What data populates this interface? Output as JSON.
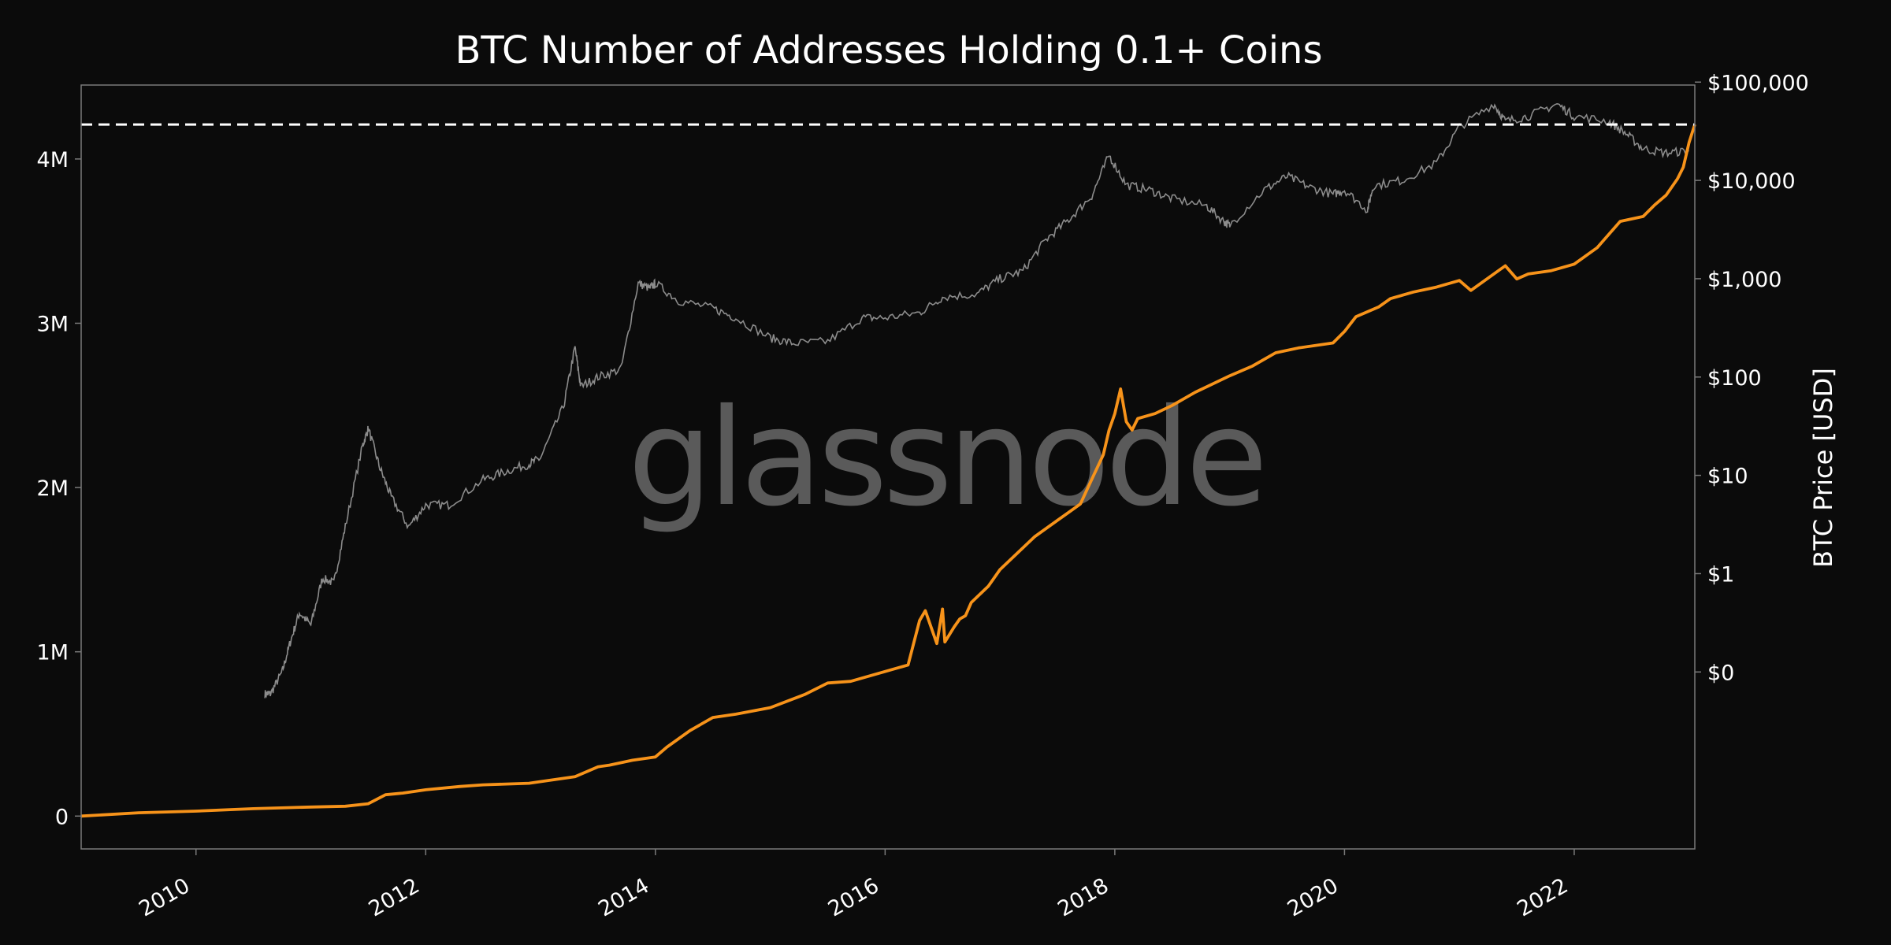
{
  "chart_data": {
    "type": "line",
    "title": "BTC Number of Addresses Holding 0.1+ Coins",
    "watermark": "glassnode",
    "xlabel": "",
    "ylabel_left": "",
    "ylabel_right": "BTC Price [USD]",
    "x_range": [
      2009.0,
      2023.05
    ],
    "y_left_range": [
      -200000,
      4450000
    ],
    "y_right_log10_range": [
      -2.8,
      4.97
    ],
    "x_ticks": [
      {
        "value": 2010,
        "label": "2010"
      },
      {
        "value": 2012,
        "label": "2012"
      },
      {
        "value": 2014,
        "label": "2014"
      },
      {
        "value": 2016,
        "label": "2016"
      },
      {
        "value": 2018,
        "label": "2018"
      },
      {
        "value": 2020,
        "label": "2020"
      },
      {
        "value": 2022,
        "label": "2022"
      }
    ],
    "y_left_ticks": [
      {
        "value": 0,
        "label": "0"
      },
      {
        "value": 1000000,
        "label": "1M"
      },
      {
        "value": 2000000,
        "label": "2M"
      },
      {
        "value": 3000000,
        "label": "3M"
      },
      {
        "value": 4000000,
        "label": "4M"
      }
    ],
    "y_right_ticks": [
      {
        "value": -1,
        "label": "$0"
      },
      {
        "value": 0,
        "label": "$1"
      },
      {
        "value": 1,
        "label": "$10"
      },
      {
        "value": 2,
        "label": "$100"
      },
      {
        "value": 3,
        "label": "$1,000"
      },
      {
        "value": 4,
        "label": "$10,000"
      },
      {
        "value": 5,
        "label": "$100,000"
      }
    ],
    "reference_line": {
      "axis": "left",
      "value": 4210000,
      "style": "dashed",
      "color": "#ffffff"
    },
    "grid": false,
    "colors": {
      "background": "#0b0b0b",
      "addresses": "#f7931a",
      "price": "#8c8c8c",
      "frame": "#7a7a7a",
      "text": "#ffffff"
    },
    "series": [
      {
        "name": "",
        "axis": "left",
        "color": "#f7931a",
        "x": [
          2009.0,
          2009.5,
          2010.0,
          2010.5,
          2011.0,
          2011.3,
          2011.5,
          2011.65,
          2011.8,
          2012.0,
          2012.3,
          2012.5,
          2012.9,
          2013.0,
          2013.3,
          2013.5,
          2013.6,
          2013.8,
          2014.0,
          2014.1,
          2014.3,
          2014.5,
          2014.7,
          2015.0,
          2015.3,
          2015.5,
          2015.7,
          2016.0,
          2016.2,
          2016.3,
          2016.35,
          2016.45,
          2016.5,
          2016.52,
          2016.6,
          2016.65,
          2016.7,
          2016.75,
          2016.9,
          2017.0,
          2017.3,
          2017.5,
          2017.6,
          2017.7,
          2017.8,
          2017.9,
          2017.95,
          2018.0,
          2018.05,
          2018.1,
          2018.15,
          2018.2,
          2018.35,
          2018.5,
          2018.7,
          2019.0,
          2019.2,
          2019.4,
          2019.6,
          2019.9,
          2020.0,
          2020.1,
          2020.3,
          2020.4,
          2020.6,
          2020.8,
          2021.0,
          2021.1,
          2021.4,
          2021.5,
          2021.6,
          2021.8,
          2022.0,
          2022.2,
          2022.4,
          2022.6,
          2022.7,
          2022.8,
          2022.9,
          2022.95,
          2023.0,
          2023.05
        ],
        "values": [
          0,
          20000,
          30000,
          45000,
          55000,
          60000,
          75000,
          130000,
          140000,
          160000,
          180000,
          190000,
          200000,
          210000,
          240000,
          300000,
          310000,
          340000,
          360000,
          420000,
          520000,
          600000,
          620000,
          660000,
          740000,
          810000,
          820000,
          880000,
          920000,
          1190000,
          1250000,
          1050000,
          1260000,
          1060000,
          1150000,
          1200000,
          1220000,
          1300000,
          1400000,
          1500000,
          1700000,
          1800000,
          1850000,
          1900000,
          2050000,
          2200000,
          2350000,
          2450000,
          2600000,
          2400000,
          2350000,
          2420000,
          2450000,
          2500000,
          2580000,
          2680000,
          2740000,
          2820000,
          2850000,
          2880000,
          2950000,
          3040000,
          3100000,
          3150000,
          3190000,
          3220000,
          3260000,
          3200000,
          3350000,
          3270000,
          3300000,
          3320000,
          3360000,
          3460000,
          3620000,
          3650000,
          3720000,
          3780000,
          3880000,
          3950000,
          4100000,
          4210000
        ]
      },
      {
        "name": "",
        "axis": "right",
        "color": "#8c8c8c",
        "scale": "log10",
        "x": [
          2010.6,
          2010.65,
          2010.75,
          2010.82,
          2010.9,
          2011.0,
          2011.1,
          2011.2,
          2011.3,
          2011.45,
          2011.5,
          2011.6,
          2011.7,
          2011.85,
          2012.0,
          2012.2,
          2012.5,
          2012.7,
          2012.9,
          2013.0,
          2013.2,
          2013.3,
          2013.35,
          2013.5,
          2013.7,
          2013.85,
          2013.95,
          2014.0,
          2014.2,
          2014.5,
          2014.7,
          2015.0,
          2015.2,
          2015.5,
          2015.8,
          2016.0,
          2016.3,
          2016.5,
          2016.8,
          2017.0,
          2017.2,
          2017.4,
          2017.6,
          2017.8,
          2017.95,
          2018.1,
          2018.3,
          2018.5,
          2018.8,
          2018.95,
          2019.0,
          2019.3,
          2019.5,
          2019.7,
          2019.9,
          2020.0,
          2020.2,
          2020.25,
          2020.5,
          2020.8,
          2021.0,
          2021.3,
          2021.4,
          2021.6,
          2021.85,
          2022.0,
          2022.3,
          2022.45,
          2022.6,
          2022.8,
          2023.0
        ],
        "values": [
          0.06,
          0.06,
          0.1,
          0.2,
          0.4,
          0.3,
          0.9,
          0.8,
          3.0,
          20,
          30,
          12,
          6,
          3,
          5,
          5,
          9,
          11,
          13,
          15,
          50,
          200,
          80,
          100,
          120,
          900,
          800,
          900,
          600,
          500,
          400,
          250,
          220,
          230,
          400,
          400,
          450,
          650,
          700,
          1000,
          1200,
          2500,
          4000,
          7000,
          18000,
          9000,
          8000,
          6500,
          5500,
          3800,
          3500,
          8000,
          11000,
          8500,
          7200,
          8000,
          5000,
          8800,
          10000,
          15000,
          35000,
          60000,
          40000,
          45000,
          60000,
          45000,
          40000,
          30000,
          21000,
          19000,
          20000
        ]
      }
    ]
  }
}
